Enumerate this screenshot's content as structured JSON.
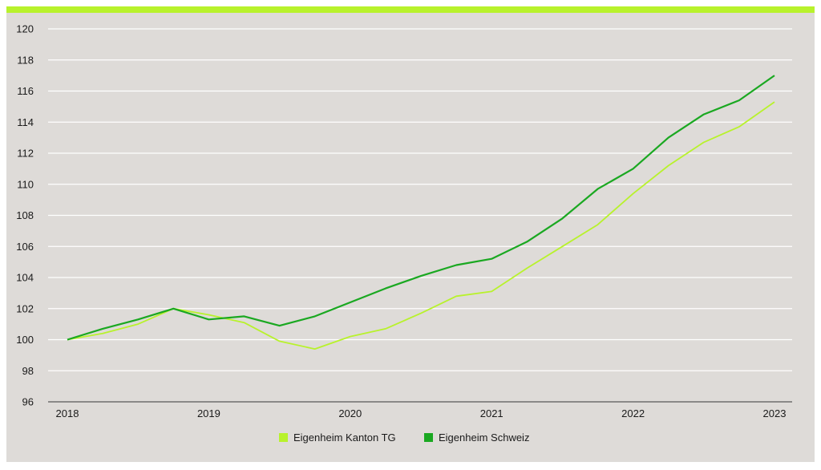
{
  "colors": {
    "background": "#dedbd8",
    "accent_bar": "#b8f22c",
    "grid": "#ffffff",
    "axis": "#6e6e6e"
  },
  "chart_data": {
    "type": "line",
    "title": "",
    "xlabel": "",
    "ylabel": "",
    "ylim": [
      96,
      120
    ],
    "yticks": [
      "96",
      "98",
      "100",
      "102",
      "104",
      "106",
      "108",
      "110",
      "112",
      "114",
      "116",
      "118",
      "120"
    ],
    "xlim": [
      2018,
      2023
    ],
    "xticks": [
      "2018",
      "2019",
      "2020",
      "2021",
      "2022",
      "2023"
    ],
    "grid": true,
    "legend_position": "bottom-center",
    "x": [
      2018,
      2018.25,
      2018.5,
      2018.75,
      2019,
      2019.25,
      2019.5,
      2019.75,
      2020,
      2020.25,
      2020.5,
      2020.75,
      2021,
      2021.25,
      2021.5,
      2021.75,
      2022,
      2022.25,
      2022.5,
      2022.75,
      2023
    ],
    "series": [
      {
        "name": "Eigenheim Kanton TG",
        "color": "#b8f22c",
        "values": [
          100,
          100.4,
          101.0,
          102.0,
          101.6,
          101.1,
          99.9,
          99.4,
          100.2,
          100.7,
          101.7,
          102.8,
          103.1,
          104.6,
          106.0,
          107.4,
          109.4,
          111.2,
          112.7,
          113.7,
          115.3
        ]
      },
      {
        "name": "Eigenheim Schweiz",
        "color": "#1aa821",
        "values": [
          100,
          100.7,
          101.3,
          102.0,
          101.3,
          101.5,
          100.9,
          101.5,
          102.4,
          103.3,
          104.1,
          104.8,
          105.2,
          106.3,
          107.8,
          109.7,
          111.0,
          113.0,
          114.5,
          115.4,
          117.0
        ]
      }
    ]
  }
}
